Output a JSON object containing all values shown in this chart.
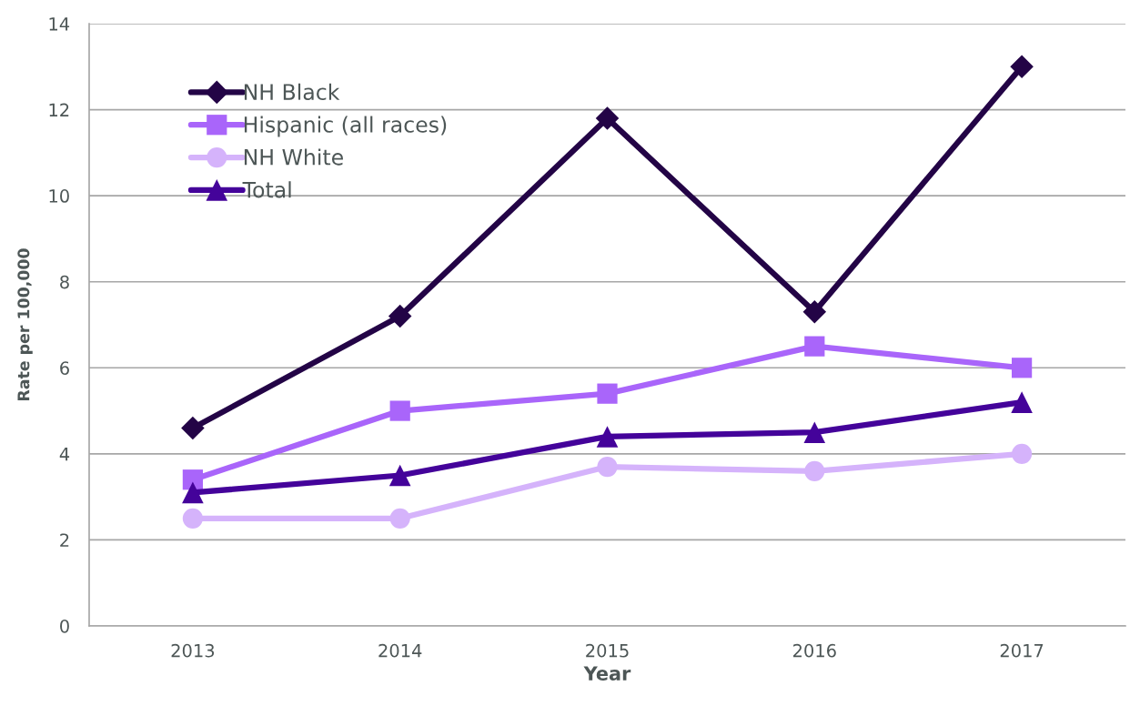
{
  "chart_data": {
    "type": "line",
    "xlabel": "Year",
    "ylabel": "Rate per 100,000",
    "categories": [
      "2013",
      "2014",
      "2015",
      "2016",
      "2017"
    ],
    "series": [
      {
        "name": "NH Black",
        "color": "#230446",
        "marker": "diamond",
        "values": [
          4.6,
          7.2,
          11.8,
          7.3,
          13.0
        ]
      },
      {
        "name": "Hispanic (all races)",
        "color": "#a965fa",
        "marker": "square",
        "values": [
          3.4,
          5.0,
          5.4,
          6.5,
          6.0
        ]
      },
      {
        "name": "NH White",
        "color": "#d5b3fb",
        "marker": "circle",
        "values": [
          2.5,
          2.5,
          3.7,
          3.6,
          4.0
        ]
      },
      {
        "name": "Total",
        "color": "#44039a",
        "marker": "triangle",
        "values": [
          3.1,
          3.5,
          4.4,
          4.5,
          5.2
        ]
      }
    ],
    "ylim": [
      0,
      14
    ],
    "yticks": [
      0,
      2,
      4,
      6,
      8,
      10,
      12,
      14
    ],
    "grid": "y",
    "legend": "top left",
    "line_style": "solid"
  }
}
